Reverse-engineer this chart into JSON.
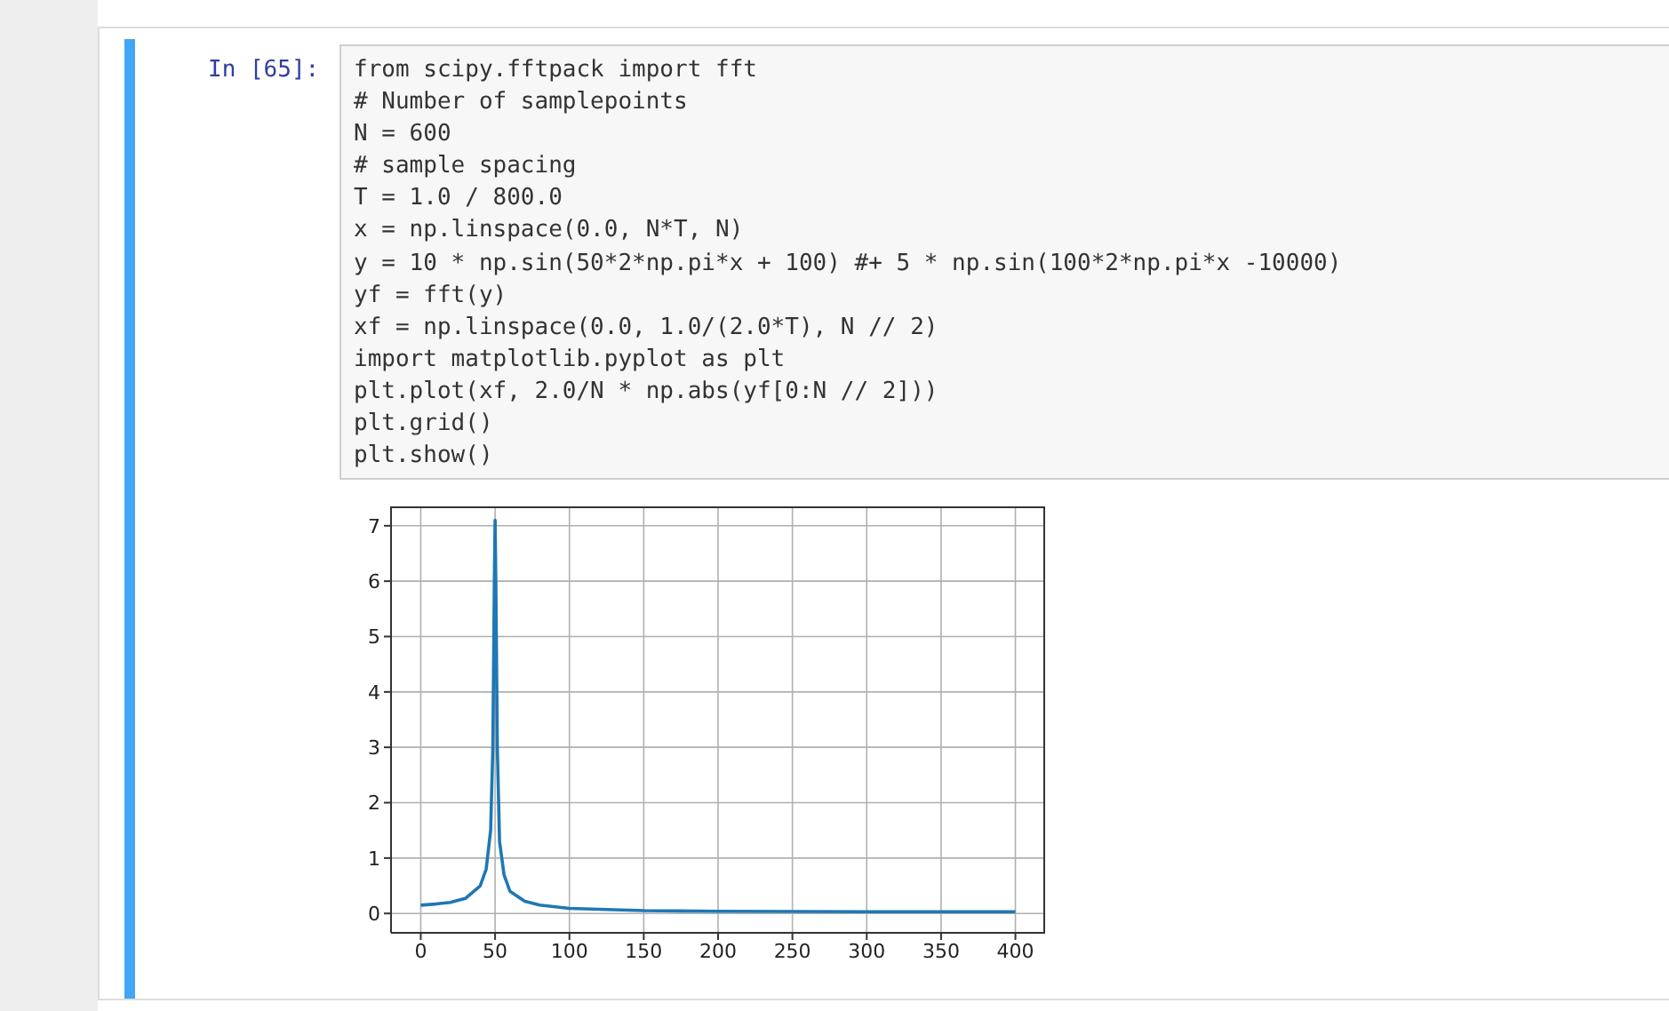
{
  "chart_data": {
    "type": "line",
    "annotations": [
      "In [65]:",
      "from scipy.fftpack import fft",
      "# Number of samplepoints",
      "N = 600",
      "# sample spacing",
      "T = 1.0 / 800.0",
      "x = np.linspace(0.0, N*T, N)",
      "y = 10 * np.sin(50*2*np.pi*x + 100) #+ 5 * np.sin(100*2*np.pi*x -10000)",
      "yf = fft(y)",
      "xf = np.linspace(0.0, 1.0/(2.0*T), N // 2)",
      "import matplotlib.pyplot as plt",
      "plt.plot(xf, 2.0/N * np.abs(yf[0:N // 2]))",
      "plt.grid()",
      "plt.show()"
    ],
    "x": [
      0,
      10,
      20,
      30,
      40,
      44,
      47,
      48.5,
      49.5,
      50,
      50.5,
      51.5,
      53,
      56,
      60,
      70,
      80,
      100,
      150,
      200,
      300,
      400
    ],
    "series": [
      {
        "color": "#1f77b4",
        "values": [
          0.15,
          0.17,
          0.2,
          0.27,
          0.5,
          0.8,
          1.5,
          3,
          6,
          7.1,
          6,
          3,
          1.3,
          0.7,
          0.4,
          0.22,
          0.15,
          0.09,
          0.05,
          0.04,
          0.03,
          0.03
        ]
      }
    ],
    "xlim": [
      -20,
      420
    ],
    "xticks": [
      0,
      50,
      100,
      150,
      200,
      250,
      300,
      350,
      400
    ],
    "ylim": [
      -0.35,
      7.35
    ],
    "yticks": [
      0,
      1,
      2,
      3,
      4,
      5,
      6,
      7
    ],
    "grid": true,
    "marker": "none",
    "line_style": "solid"
  }
}
